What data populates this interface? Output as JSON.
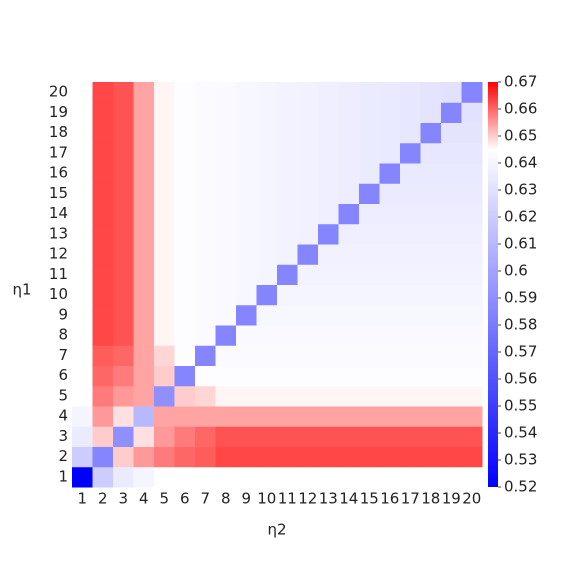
{
  "chart_data": {
    "type": "heatmap",
    "x_label": "η2",
    "y_label": "η1",
    "x": [
      1,
      2,
      3,
      4,
      5,
      6,
      7,
      8,
      9,
      10,
      11,
      12,
      13,
      14,
      15,
      16,
      17,
      18,
      19,
      20
    ],
    "y": [
      1,
      2,
      3,
      4,
      5,
      6,
      7,
      8,
      9,
      10,
      11,
      12,
      13,
      14,
      15,
      16,
      17,
      18,
      19,
      20
    ],
    "z": [
      [
        0.52,
        0.62,
        0.635,
        0.64,
        0.645,
        0.645,
        0.645,
        0.645,
        0.645,
        0.645,
        0.645,
        0.645,
        0.645,
        0.645,
        0.645,
        0.645,
        0.645,
        0.645,
        0.645,
        0.645
      ],
      [
        0.62,
        0.585,
        0.65,
        0.655,
        0.658,
        0.66,
        0.661,
        0.663,
        0.663,
        0.663,
        0.663,
        0.663,
        0.663,
        0.663,
        0.663,
        0.663,
        0.663,
        0.663,
        0.663,
        0.663
      ],
      [
        0.635,
        0.65,
        0.59,
        0.648,
        0.655,
        0.658,
        0.66,
        0.662,
        0.662,
        0.662,
        0.662,
        0.662,
        0.662,
        0.662,
        0.662,
        0.662,
        0.662,
        0.662,
        0.662,
        0.662
      ],
      [
        0.64,
        0.655,
        0.648,
        0.61,
        0.654,
        0.654,
        0.654,
        0.654,
        0.654,
        0.654,
        0.654,
        0.654,
        0.654,
        0.654,
        0.654,
        0.654,
        0.654,
        0.654,
        0.654,
        0.654
      ],
      [
        0.645,
        0.658,
        0.655,
        0.654,
        0.59,
        0.65,
        0.649,
        0.646,
        0.646,
        0.646,
        0.646,
        0.646,
        0.646,
        0.646,
        0.646,
        0.646,
        0.646,
        0.646,
        0.646,
        0.646
      ],
      [
        0.645,
        0.66,
        0.658,
        0.654,
        0.65,
        0.585,
        0.644,
        0.644,
        0.644,
        0.644,
        0.644,
        0.644,
        0.644,
        0.644,
        0.644,
        0.644,
        0.644,
        0.644,
        0.644,
        0.644
      ],
      [
        0.645,
        0.661,
        0.66,
        0.654,
        0.649,
        0.644,
        0.585,
        0.643,
        0.643,
        0.643,
        0.643,
        0.643,
        0.643,
        0.643,
        0.643,
        0.643,
        0.643,
        0.643,
        0.643,
        0.643
      ],
      [
        0.645,
        0.663,
        0.662,
        0.654,
        0.646,
        0.644,
        0.643,
        0.585,
        0.642,
        0.642,
        0.642,
        0.642,
        0.642,
        0.642,
        0.642,
        0.642,
        0.642,
        0.642,
        0.642,
        0.642
      ],
      [
        0.645,
        0.663,
        0.662,
        0.654,
        0.646,
        0.644,
        0.643,
        0.642,
        0.585,
        0.641,
        0.641,
        0.641,
        0.641,
        0.641,
        0.641,
        0.641,
        0.641,
        0.641,
        0.641,
        0.641
      ],
      [
        0.645,
        0.663,
        0.662,
        0.654,
        0.646,
        0.644,
        0.643,
        0.642,
        0.641,
        0.585,
        0.64,
        0.64,
        0.64,
        0.64,
        0.64,
        0.64,
        0.64,
        0.64,
        0.64,
        0.64
      ],
      [
        0.645,
        0.663,
        0.662,
        0.654,
        0.646,
        0.644,
        0.643,
        0.642,
        0.641,
        0.64,
        0.585,
        0.639,
        0.639,
        0.639,
        0.639,
        0.639,
        0.639,
        0.639,
        0.639,
        0.639
      ],
      [
        0.645,
        0.663,
        0.662,
        0.654,
        0.646,
        0.644,
        0.643,
        0.642,
        0.641,
        0.64,
        0.639,
        0.585,
        0.638,
        0.638,
        0.638,
        0.638,
        0.638,
        0.638,
        0.638,
        0.638
      ],
      [
        0.645,
        0.663,
        0.662,
        0.654,
        0.646,
        0.644,
        0.643,
        0.642,
        0.641,
        0.64,
        0.639,
        0.638,
        0.585,
        0.637,
        0.637,
        0.637,
        0.637,
        0.637,
        0.637,
        0.637
      ],
      [
        0.645,
        0.663,
        0.662,
        0.654,
        0.646,
        0.644,
        0.643,
        0.642,
        0.641,
        0.64,
        0.639,
        0.638,
        0.637,
        0.585,
        0.636,
        0.636,
        0.636,
        0.636,
        0.636,
        0.636
      ],
      [
        0.645,
        0.663,
        0.662,
        0.654,
        0.646,
        0.644,
        0.643,
        0.642,
        0.641,
        0.64,
        0.639,
        0.638,
        0.637,
        0.636,
        0.585,
        0.635,
        0.635,
        0.635,
        0.635,
        0.635
      ],
      [
        0.645,
        0.663,
        0.662,
        0.654,
        0.646,
        0.644,
        0.643,
        0.642,
        0.641,
        0.64,
        0.639,
        0.638,
        0.637,
        0.636,
        0.635,
        0.585,
        0.634,
        0.634,
        0.634,
        0.634
      ],
      [
        0.645,
        0.663,
        0.662,
        0.654,
        0.646,
        0.644,
        0.643,
        0.642,
        0.641,
        0.64,
        0.639,
        0.638,
        0.637,
        0.636,
        0.635,
        0.634,
        0.585,
        0.633,
        0.633,
        0.633
      ],
      [
        0.645,
        0.663,
        0.662,
        0.654,
        0.646,
        0.644,
        0.643,
        0.642,
        0.641,
        0.64,
        0.639,
        0.638,
        0.637,
        0.636,
        0.635,
        0.634,
        0.633,
        0.585,
        0.632,
        0.632
      ],
      [
        0.645,
        0.663,
        0.662,
        0.654,
        0.646,
        0.644,
        0.643,
        0.642,
        0.641,
        0.64,
        0.639,
        0.638,
        0.637,
        0.636,
        0.635,
        0.634,
        0.633,
        0.632,
        0.585,
        0.631
      ],
      [
        0.645,
        0.663,
        0.662,
        0.654,
        0.646,
        0.644,
        0.643,
        0.642,
        0.641,
        0.64,
        0.639,
        0.638,
        0.637,
        0.636,
        0.635,
        0.634,
        0.633,
        0.632,
        0.631,
        0.585
      ]
    ],
    "colorscale": [
      [
        0.52,
        "#0000ff"
      ],
      [
        0.645,
        "#ffffff"
      ],
      [
        0.67,
        "#ff0000"
      ]
    ],
    "zlim": [
      0.52,
      0.67
    ],
    "zticks": [
      0.52,
      0.53,
      0.54,
      0.55,
      0.56,
      0.57,
      0.58,
      0.59,
      0.6,
      0.61,
      0.62,
      0.63,
      0.64,
      0.65,
      0.66,
      0.67
    ]
  }
}
